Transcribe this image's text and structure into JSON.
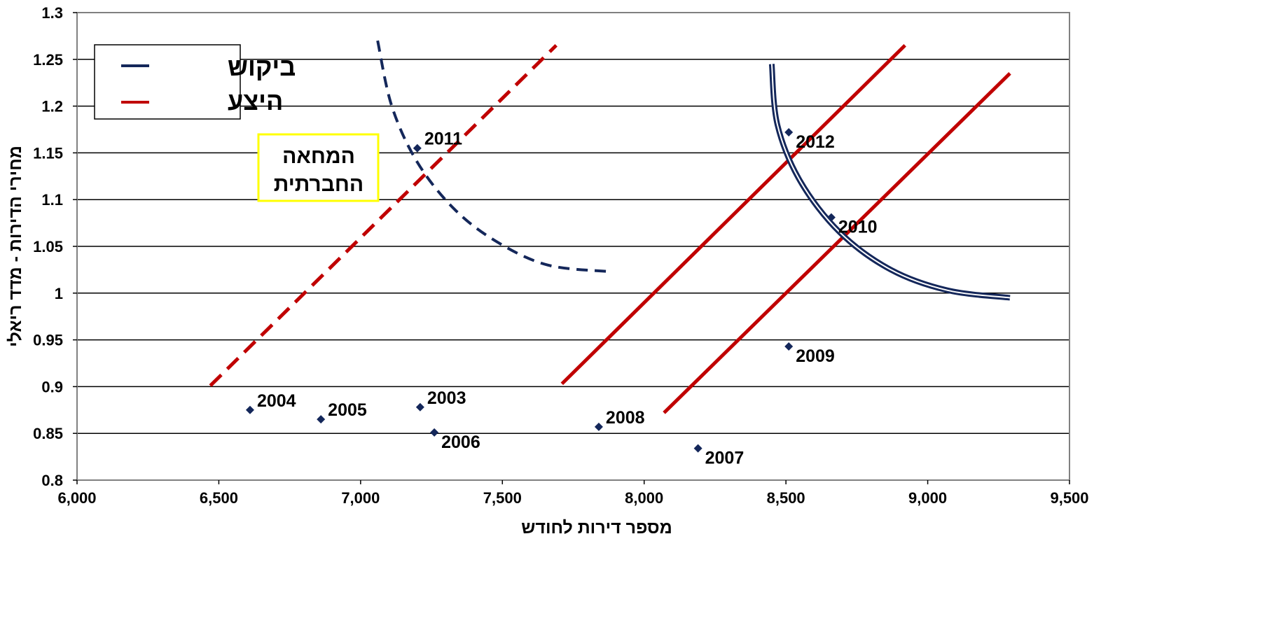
{
  "chart_data": {
    "type": "scatter",
    "title": "",
    "xlabel": "מספר דירות לחודש",
    "ylabel": "מחירי הדירות - מדד ריאלי",
    "xlim": [
      6000,
      9500
    ],
    "ylim": [
      0.8,
      1.3
    ],
    "x_ticks": [
      6000,
      6500,
      7000,
      7500,
      8000,
      8500,
      9000,
      9500
    ],
    "x_tick_labels": [
      "6,000",
      "6,500",
      "7,000",
      "7,500",
      "8,000",
      "8,500",
      "9,000",
      "9,500"
    ],
    "y_ticks": [
      0.8,
      0.85,
      0.9,
      0.95,
      1.0,
      1.05,
      1.1,
      1.15,
      1.2,
      1.25,
      1.3
    ],
    "y_tick_labels": [
      "0.8",
      "0.85",
      "0.9",
      "0.95",
      "1",
      "1.05",
      "1.1",
      "1.15",
      "1.2",
      "1.25",
      "1.3"
    ],
    "grid": "horizontal",
    "legend_position": "top-left",
    "legend": [
      {
        "label": "ביקוש",
        "color": "#14275a",
        "style": "solid"
      },
      {
        "label": "היצע",
        "color": "#c00000",
        "style": "solid"
      }
    ],
    "annotation": {
      "lines": [
        "המחאה",
        "החברתית"
      ],
      "border_color": "#ffff00"
    },
    "points": [
      {
        "label": "2003",
        "x": 7210,
        "y": 0.878
      },
      {
        "label": "2004",
        "x": 6610,
        "y": 0.875
      },
      {
        "label": "2005",
        "x": 6860,
        "y": 0.865
      },
      {
        "label": "2006",
        "x": 7260,
        "y": 0.851
      },
      {
        "label": "2007",
        "x": 8190,
        "y": 0.834
      },
      {
        "label": "2008",
        "x": 7840,
        "y": 0.857
      },
      {
        "label": "2009",
        "x": 8510,
        "y": 0.943
      },
      {
        "label": "2010",
        "x": 8660,
        "y": 1.081
      },
      {
        "label": "2011",
        "x": 7200,
        "y": 1.155
      },
      {
        "label": "2012",
        "x": 8510,
        "y": 1.172
      }
    ],
    "point_color": "#14275a",
    "curves": [
      {
        "kind": "supply",
        "color": "#c00000",
        "style": "dashed",
        "from": {
          "x": 6470,
          "y": 0.901
        },
        "to": {
          "x": 7690,
          "y": 1.265
        }
      },
      {
        "kind": "supply",
        "color": "#c00000",
        "style": "solid",
        "from": {
          "x": 7710,
          "y": 0.903
        },
        "to": {
          "x": 8920,
          "y": 1.265
        }
      },
      {
        "kind": "supply",
        "color": "#c00000",
        "style": "solid",
        "from": {
          "x": 8070,
          "y": 0.872
        },
        "to": {
          "x": 9290,
          "y": 1.235
        }
      },
      {
        "kind": "demand",
        "color": "#14275a",
        "style": "dashed",
        "points": [
          {
            "x": 7060,
            "y": 1.27
          },
          {
            "x": 7110,
            "y": 1.2
          },
          {
            "x": 7200,
            "y": 1.14
          },
          {
            "x": 7330,
            "y": 1.09
          },
          {
            "x": 7480,
            "y": 1.055
          },
          {
            "x": 7660,
            "y": 1.03
          },
          {
            "x": 7880,
            "y": 1.023
          }
        ]
      },
      {
        "kind": "demand",
        "color": "#14275a",
        "style": "double",
        "points": [
          {
            "x": 8450,
            "y": 1.245
          },
          {
            "x": 8470,
            "y": 1.18
          },
          {
            "x": 8550,
            "y": 1.12
          },
          {
            "x": 8690,
            "y": 1.065
          },
          {
            "x": 8870,
            "y": 1.025
          },
          {
            "x": 9070,
            "y": 1.003
          },
          {
            "x": 9290,
            "y": 0.995
          }
        ]
      }
    ]
  }
}
